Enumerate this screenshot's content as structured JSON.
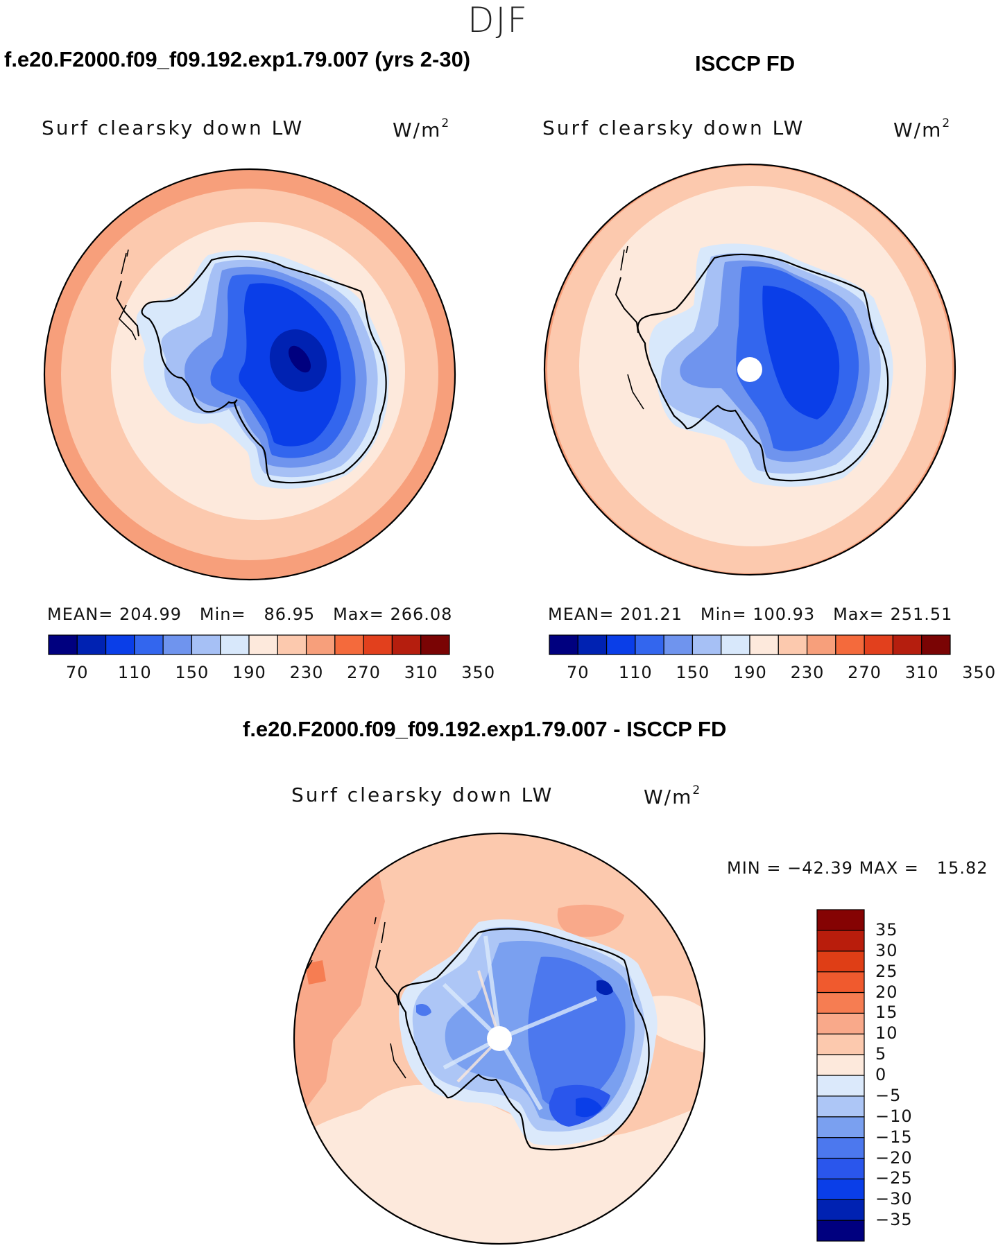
{
  "season": "DJF",
  "panels": [
    {
      "case_title": "f.e20.F2000.f09_f09.192.exp1.79.007 (yrs 2-30)",
      "variable": "Surf clearsky down LW",
      "units": "W/m",
      "units_sup": "2",
      "stats": {
        "mean_label": "MEAN=",
        "mean": "204.99",
        "min_label": "Min=",
        "min": "86.95",
        "max_label": "Max=",
        "max": "266.08"
      }
    },
    {
      "case_title": "ISCCP FD",
      "variable": "Surf clearsky down LW",
      "units": "W/m",
      "units_sup": "2",
      "stats": {
        "mean_label": "MEAN=",
        "mean": "201.21",
        "min_label": "Min=",
        "min": "100.93",
        "max_label": "Max=",
        "max": "251.51"
      }
    },
    {
      "case_title": "f.e20.F2000.f09_f09.192.exp1.79.007 - ISCCP FD",
      "variable": "Surf clearsky down LW",
      "units": "W/m",
      "units_sup": "2",
      "stats": {
        "min_label": "MIN =",
        "min": "−42.39",
        "max_label": "MAX =",
        "max": "15.82"
      }
    }
  ],
  "colorbar_abs": {
    "colors": [
      "#00007f",
      "#0022b2",
      "#0a3ee8",
      "#3366ee",
      "#6f94ee",
      "#a6c0f5",
      "#d8e8fb",
      "#fde9dc",
      "#fcc9ae",
      "#f79f7b",
      "#f46a3c",
      "#e2401d",
      "#b51e0e",
      "#7a0404"
    ],
    "labels": [
      "70",
      "110",
      "150",
      "190",
      "230",
      "270",
      "310",
      "350"
    ]
  },
  "colorbar_diff": {
    "colors": [
      "#00007f",
      "#0022b2",
      "#0a3ee8",
      "#2a56ec",
      "#4c78ee",
      "#7aa0f0",
      "#adc6f6",
      "#dbe9fb",
      "#fde9dc",
      "#fcc9ae",
      "#f9a98a",
      "#f67d52",
      "#f05a2e",
      "#df3e16",
      "#b91d0c",
      "#850303"
    ],
    "labels": [
      "−35",
      "−30",
      "−25",
      "−20",
      "−15",
      "−10",
      "−5",
      "0",
      "5",
      "10",
      "15",
      "20",
      "25",
      "30",
      "35"
    ]
  }
}
